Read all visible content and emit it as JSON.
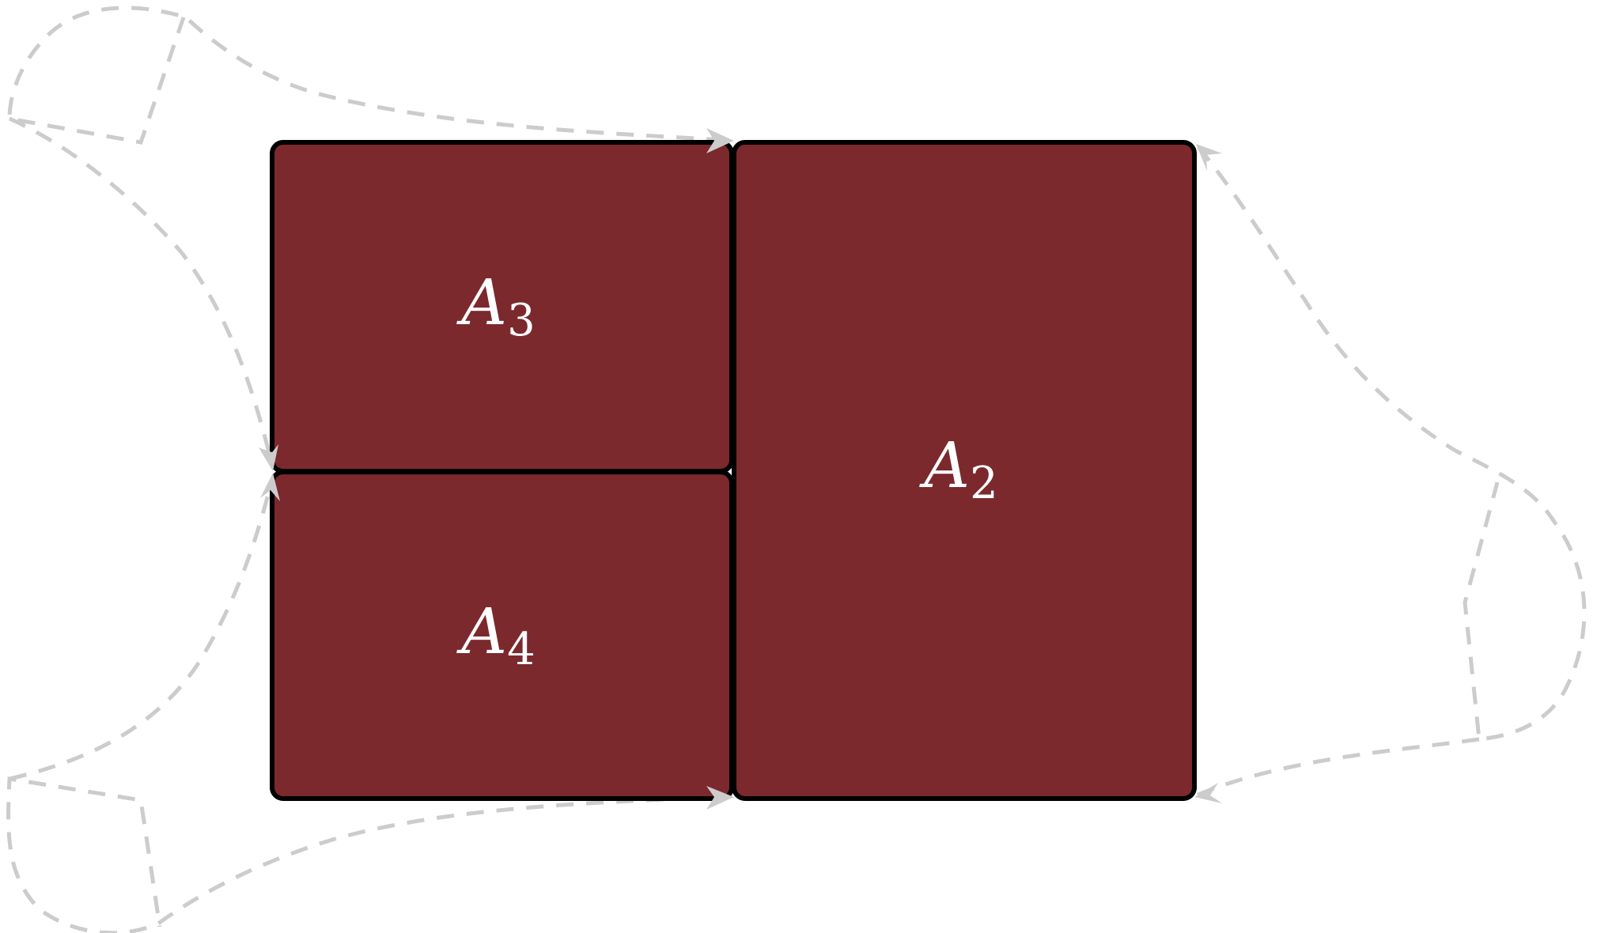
{
  "colors": {
    "panel_fill": "#7b292d",
    "panel_border": "#000000",
    "loop_stroke": "#cccccc",
    "label_text": "#ffffff"
  },
  "panels": [
    {
      "id": "a3",
      "label_main": "A",
      "label_sub": "3"
    },
    {
      "id": "a4",
      "label_main": "A",
      "label_sub": "4"
    },
    {
      "id": "a2",
      "label_main": "A",
      "label_sub": "2"
    }
  ],
  "loops": [
    {
      "id": "left-upper",
      "style": "dashed",
      "direction": "arrow-right"
    },
    {
      "id": "left-lower",
      "style": "dashed",
      "direction": "arrow-right"
    },
    {
      "id": "right",
      "style": "dashed",
      "direction": "arrow-left"
    }
  ]
}
